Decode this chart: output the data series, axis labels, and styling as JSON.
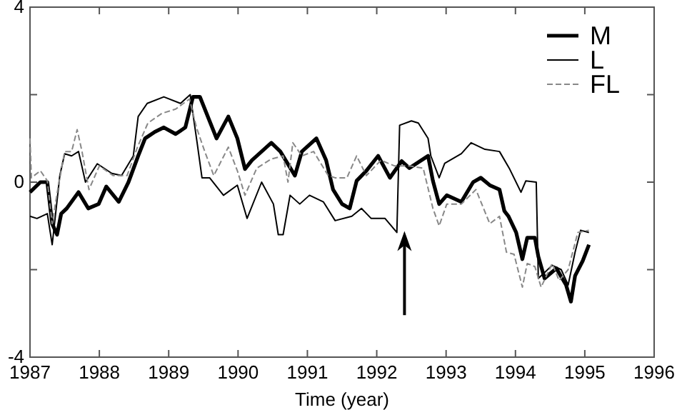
{
  "chart_data": {
    "type": "line",
    "xlabel": "Time (year)",
    "xlim": [
      1987,
      1996
    ],
    "xticks": [
      1987,
      1988,
      1989,
      1990,
      1991,
      1992,
      1993,
      1994,
      1995,
      1996
    ],
    "ylim": [
      -4,
      4
    ],
    "yticks": [
      -4,
      {
        "value": -2,
        "label": null
      },
      0,
      {
        "value": 2,
        "label": null
      },
      4
    ],
    "legend": "top right",
    "grid": false,
    "marker": "none",
    "series": [
      {
        "name": "M",
        "color": "#000000",
        "line_style": "solid",
        "x": [
          1987.0,
          1987.15,
          1987.25,
          1987.32,
          1987.39,
          1987.45,
          1987.53,
          1987.7,
          1987.84,
          1987.99,
          1988.1,
          1988.28,
          1988.42,
          1988.56,
          1988.66,
          1988.8,
          1988.93,
          1989.1,
          1989.24,
          1989.35,
          1989.45,
          1989.69,
          1989.86,
          1989.99,
          1990.1,
          1990.2,
          1990.34,
          1990.48,
          1990.61,
          1990.82,
          1990.92,
          1991.13,
          1991.27,
          1991.37,
          1991.5,
          1991.61,
          1991.71,
          1991.85,
          1992.02,
          1992.19,
          1992.36,
          1992.47,
          1992.74,
          1992.81,
          1992.9,
          1993.01,
          1993.22,
          1993.39,
          1993.5,
          1993.63,
          1993.77,
          1993.84,
          1993.9,
          1994.01,
          1994.1,
          1994.17,
          1994.28,
          1994.33,
          1994.42,
          1994.59,
          1994.73,
          1994.8,
          1994.86,
          1994.97,
          1995.06
        ],
        "values": [
          -0.23,
          0.0,
          0.0,
          -0.95,
          -1.2,
          -0.72,
          -0.6,
          -0.23,
          -0.6,
          -0.5,
          -0.1,
          -0.45,
          0.0,
          0.6,
          1.0,
          1.15,
          1.25,
          1.1,
          1.25,
          1.95,
          1.95,
          1.0,
          1.5,
          1.0,
          0.3,
          0.5,
          0.7,
          0.9,
          0.7,
          0.15,
          0.7,
          1.0,
          0.5,
          -0.17,
          -0.5,
          -0.6,
          0.03,
          0.26,
          0.6,
          0.1,
          0.48,
          0.32,
          0.6,
          0.03,
          -0.5,
          -0.3,
          -0.45,
          0.0,
          0.1,
          -0.07,
          -0.17,
          -0.66,
          -0.78,
          -1.15,
          -1.76,
          -1.27,
          -1.27,
          -1.7,
          -2.2,
          -1.97,
          -2.35,
          -2.73,
          -2.14,
          -1.8,
          -1.43
        ]
      },
      {
        "name": "L",
        "color": "#000000",
        "line_style": "solid",
        "x": [
          1987.0,
          1987.1,
          1987.25,
          1987.32,
          1987.43,
          1987.5,
          1987.6,
          1987.7,
          1987.8,
          1987.97,
          1988.18,
          1988.32,
          1988.49,
          1988.56,
          1988.69,
          1988.93,
          1989.17,
          1989.31,
          1989.41,
          1989.48,
          1989.59,
          1989.79,
          1989.99,
          1990.13,
          1990.34,
          1990.51,
          1990.58,
          1990.65,
          1990.75,
          1990.89,
          1991.03,
          1991.23,
          1991.4,
          1991.64,
          1991.78,
          1991.92,
          1992.12,
          1992.29,
          1992.33,
          1992.5,
          1992.6,
          1992.74,
          1992.78,
          1992.9,
          1992.98,
          1993.22,
          1993.36,
          1993.56,
          1993.77,
          1993.91,
          1994.08,
          1994.15,
          1994.3,
          1994.33,
          1994.53,
          1994.66,
          1994.76,
          1994.86,
          1994.94,
          1995.06
        ],
        "values": [
          -0.78,
          -0.83,
          -0.72,
          -1.43,
          0.15,
          0.65,
          0.6,
          0.7,
          0.0,
          0.42,
          0.2,
          0.15,
          0.6,
          1.5,
          1.8,
          1.95,
          1.8,
          2.0,
          0.9,
          0.1,
          0.1,
          -0.3,
          -0.07,
          -0.83,
          0.0,
          -0.5,
          -1.2,
          -1.2,
          -0.3,
          -0.5,
          -0.3,
          -0.45,
          -0.88,
          -0.78,
          -0.6,
          -0.83,
          -0.83,
          -1.15,
          1.3,
          1.4,
          1.35,
          1.0,
          0.6,
          0.1,
          0.43,
          0.65,
          0.9,
          0.75,
          0.7,
          0.32,
          -0.23,
          0.03,
          0.0,
          -2.2,
          -1.9,
          -2.0,
          -2.35,
          -1.6,
          -1.1,
          -1.15
        ]
      },
      {
        "name": "FL",
        "color": "#888888",
        "line_style": "dashed",
        "x": [
          1987.0,
          1987.02,
          1987.15,
          1987.25,
          1987.32,
          1987.4,
          1987.5,
          1987.6,
          1987.68,
          1987.75,
          1987.85,
          1988.0,
          1988.2,
          1988.4,
          1988.55,
          1988.7,
          1988.9,
          1989.1,
          1989.3,
          1989.4,
          1989.52,
          1989.65,
          1989.86,
          1989.99,
          1990.1,
          1990.27,
          1990.48,
          1990.65,
          1990.72,
          1990.79,
          1990.92,
          1991.09,
          1991.3,
          1991.4,
          1991.57,
          1991.71,
          1991.85,
          1992.06,
          1992.26,
          1992.47,
          1992.67,
          1992.81,
          1992.9,
          1993.01,
          1993.22,
          1993.43,
          1993.63,
          1993.77,
          1993.87,
          1993.98,
          1994.1,
          1994.17,
          1994.28,
          1994.37,
          1994.53,
          1994.63,
          1994.76,
          1994.9,
          1995.06
        ],
        "values": [
          1.0,
          0.1,
          0.26,
          0.03,
          -0.95,
          -0.17,
          0.7,
          0.7,
          1.2,
          0.7,
          -0.17,
          0.37,
          0.15,
          0.15,
          0.8,
          1.35,
          1.57,
          1.67,
          1.9,
          1.25,
          0.7,
          0.15,
          0.8,
          0.26,
          -0.3,
          0.32,
          0.53,
          0.6,
          0.0,
          0.9,
          0.6,
          0.7,
          0.15,
          0.1,
          0.1,
          0.6,
          0.15,
          0.5,
          0.37,
          0.37,
          0.32,
          -0.6,
          -1.0,
          -0.5,
          -0.5,
          -0.17,
          -0.95,
          -0.78,
          -1.6,
          -1.65,
          -2.4,
          -1.86,
          -1.93,
          -2.4,
          -1.86,
          -2.25,
          -2.0,
          -1.15,
          -1.1
        ]
      }
    ]
  }
}
